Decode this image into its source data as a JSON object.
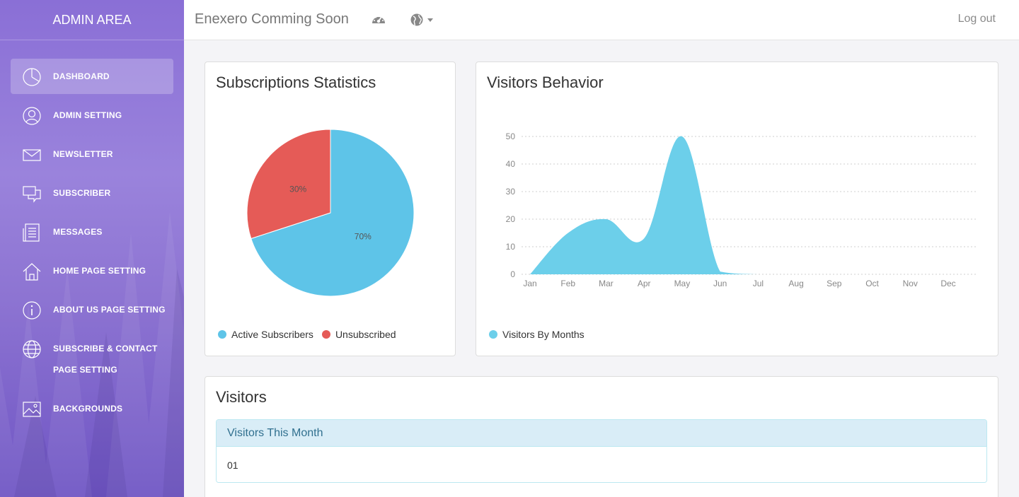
{
  "sidebar": {
    "brand": "ADMIN AREA",
    "items": [
      {
        "label": "DASHBOARD",
        "icon": "pie-chart-icon",
        "active": true
      },
      {
        "label": "ADMIN SETTING",
        "icon": "user-icon"
      },
      {
        "label": "NEWSLETTER",
        "icon": "envelope-icon"
      },
      {
        "label": "SUBSCRIBER",
        "icon": "chat-bubbles-icon"
      },
      {
        "label": "MESSAGES",
        "icon": "document-icon"
      },
      {
        "label": "HOME PAGE SETTING",
        "icon": "home-icon"
      },
      {
        "label": "ABOUT US PAGE SETTING",
        "icon": "info-icon"
      },
      {
        "label": "SUBSCRIBE & CONTACT",
        "label2": "PAGE SETTING",
        "icon": "globe-icon"
      },
      {
        "label": "BACKGROUNDS",
        "icon": "image-icon"
      }
    ]
  },
  "topbar": {
    "title": "Enexero Comming Soon",
    "dashboard_icon": "dashboard-gauge-icon",
    "language_icon": "globe-icon",
    "logout_label": "Log out"
  },
  "subscriptions": {
    "title": "Subscriptions Statistics",
    "chart_data": {
      "type": "pie",
      "slices": [
        {
          "label": "Active Subscribers",
          "value": 70,
          "display": "70%",
          "color": "#5ec4e8"
        },
        {
          "label": "Unsubscribed",
          "value": 30,
          "display": "30%",
          "color": "#e55b57"
        }
      ],
      "legend": "bottom-left"
    }
  },
  "visitors_behavior": {
    "title": "Visitors Behavior",
    "chart_data": {
      "type": "area",
      "categories": [
        "Jan",
        "Feb",
        "Mar",
        "Apr",
        "May",
        "Jun",
        "Jul",
        "Aug",
        "Sep",
        "Oct",
        "Nov",
        "Dec"
      ],
      "series": [
        {
          "name": "Visitors By Months",
          "values": [
            0,
            15,
            20,
            13,
            50,
            1,
            0,
            0,
            0,
            0,
            0,
            0
          ],
          "color": "#6ccfea"
        }
      ],
      "yticks": [
        "0",
        "10",
        "20",
        "30",
        "40",
        "50"
      ],
      "ylim": [
        0,
        50
      ],
      "grid": "dotted horizontal",
      "legend": "bottom-left"
    }
  },
  "visitors": {
    "title": "Visitors",
    "panel_heading": "Visitors This Month",
    "panel_value": "01"
  }
}
